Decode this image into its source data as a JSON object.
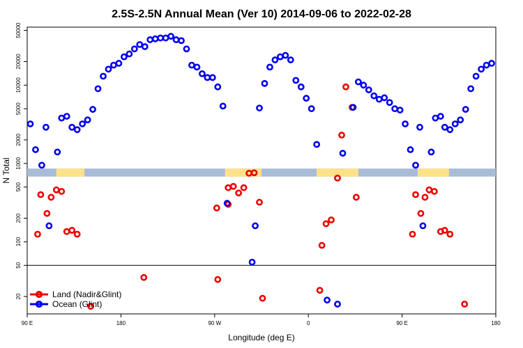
{
  "chart_data": {
    "type": "scatter",
    "title": "2.5S-2.5N Annual Mean (Ver 10)   2014-09-06 to 2022-02-28",
    "xlabel": "Longitude (deg E)",
    "ylabel": "N Total",
    "x_ticks": [
      {
        "pos": 0,
        "label": "90 E"
      },
      {
        "pos": 90,
        "label": "180"
      },
      {
        "pos": 180,
        "label": "90 W"
      },
      {
        "pos": 270,
        "label": "0"
      },
      {
        "pos": 360,
        "label": "90 E"
      },
      {
        "pos": 450,
        "label": "180"
      }
    ],
    "xlim": [
      0,
      450
    ],
    "y_ticks": [
      20,
      50,
      100,
      200,
      500,
      1000,
      2000,
      5000,
      10000,
      20000,
      50000
    ],
    "ylim": [
      12,
      55000
    ],
    "y_scale": "log",
    "reference_line": 50,
    "band": {
      "ymin": 680,
      "ymax": 860,
      "color": "#a8bcd8",
      "land_color": "#fde28a"
    },
    "land_segments": [
      [
        28,
        55
      ],
      [
        190,
        225
      ],
      [
        278,
        318
      ],
      [
        375,
        405
      ]
    ],
    "series": [
      {
        "name": "Land (Nadir&Glint)",
        "color": "#ee0000",
        "points": [
          [
            10,
            125
          ],
          [
            13,
            400
          ],
          [
            19,
            230
          ],
          [
            23,
            370
          ],
          [
            28,
            460
          ],
          [
            33,
            440
          ],
          [
            38,
            135
          ],
          [
            43,
            140
          ],
          [
            48,
            125
          ],
          [
            61,
            15
          ],
          [
            112,
            35
          ],
          [
            182,
            270
          ],
          [
            183,
            33
          ],
          [
            193,
            300
          ],
          [
            193,
            490
          ],
          [
            198,
            510
          ],
          [
            203,
            420
          ],
          [
            208,
            490
          ],
          [
            213,
            750
          ],
          [
            218,
            760
          ],
          [
            223,
            320
          ],
          [
            226,
            19
          ],
          [
            281,
            24
          ],
          [
            283,
            90
          ],
          [
            287,
            170
          ],
          [
            292,
            190
          ],
          [
            298,
            650
          ],
          [
            302,
            2300
          ],
          [
            306,
            9500
          ],
          [
            312,
            5200
          ],
          [
            316,
            370
          ],
          [
            370,
            125
          ],
          [
            373,
            400
          ],
          [
            378,
            230
          ],
          [
            382,
            370
          ],
          [
            386,
            460
          ],
          [
            391,
            440
          ],
          [
            397,
            135
          ],
          [
            401,
            140
          ],
          [
            406,
            125
          ],
          [
            420,
            16
          ]
        ]
      },
      {
        "name": "Ocean (Glint)",
        "color": "#0000ee",
        "points": [
          [
            3,
            3200
          ],
          [
            8,
            1500
          ],
          [
            14,
            950
          ],
          [
            18,
            2900
          ],
          [
            21,
            160
          ],
          [
            29,
            1400
          ],
          [
            33,
            3800
          ],
          [
            38,
            4000
          ],
          [
            43,
            2900
          ],
          [
            48,
            2700
          ],
          [
            53,
            3200
          ],
          [
            58,
            3600
          ],
          [
            63,
            4900
          ],
          [
            68,
            9000
          ],
          [
            73,
            13000
          ],
          [
            78,
            16000
          ],
          [
            83,
            18000
          ],
          [
            88,
            19000
          ],
          [
            93,
            23000
          ],
          [
            98,
            25000
          ],
          [
            103,
            29000
          ],
          [
            108,
            33000
          ],
          [
            113,
            31000
          ],
          [
            118,
            38000
          ],
          [
            123,
            39000
          ],
          [
            128,
            40000
          ],
          [
            133,
            40000
          ],
          [
            138,
            42000
          ],
          [
            143,
            38000
          ],
          [
            148,
            37000
          ],
          [
            153,
            29000
          ],
          [
            158,
            18000
          ],
          [
            163,
            17000
          ],
          [
            168,
            14000
          ],
          [
            173,
            12500
          ],
          [
            178,
            12500
          ],
          [
            183,
            9500
          ],
          [
            188,
            5400
          ],
          [
            192,
            310
          ],
          [
            216,
            55
          ],
          [
            219,
            160
          ],
          [
            223,
            5100
          ],
          [
            228,
            10500
          ],
          [
            233,
            17000
          ],
          [
            238,
            21000
          ],
          [
            243,
            23000
          ],
          [
            248,
            24000
          ],
          [
            253,
            21000
          ],
          [
            258,
            11500
          ],
          [
            263,
            9500
          ],
          [
            268,
            6800
          ],
          [
            273,
            5000
          ],
          [
            278,
            1750
          ],
          [
            288,
            18
          ],
          [
            298,
            16
          ],
          [
            303,
            1350
          ],
          [
            313,
            5200
          ],
          [
            318,
            11000
          ],
          [
            323,
            10000
          ],
          [
            328,
            8700
          ],
          [
            333,
            7300
          ],
          [
            338,
            6600
          ],
          [
            343,
            6900
          ],
          [
            348,
            6000
          ],
          [
            353,
            5000
          ],
          [
            358,
            4800
          ],
          [
            363,
            3200
          ],
          [
            368,
            1500
          ],
          [
            373,
            950
          ],
          [
            377,
            2900
          ],
          [
            380,
            160
          ],
          [
            388,
            1400
          ],
          [
            392,
            3800
          ],
          [
            397,
            4000
          ],
          [
            401,
            2900
          ],
          [
            406,
            2700
          ],
          [
            411,
            3200
          ],
          [
            416,
            3600
          ],
          [
            421,
            4900
          ],
          [
            426,
            9000
          ],
          [
            431,
            13000
          ],
          [
            436,
            16000
          ],
          [
            441,
            18000
          ],
          [
            446,
            19000
          ]
        ]
      }
    ],
    "legend": {
      "position": "bottom-left"
    }
  }
}
